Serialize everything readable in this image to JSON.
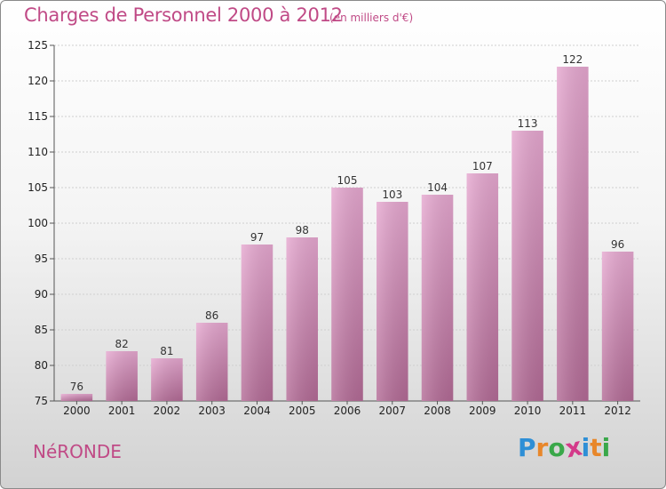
{
  "header": {
    "title": "Charges de Personnel 2000 à 2012",
    "subtitle": "(en milliers d'€)"
  },
  "footer": {
    "city": "NéRONDE",
    "logo_letters": [
      "P",
      "r",
      "o",
      "x",
      "i",
      "t",
      "i"
    ],
    "logo_colors": [
      "#2e8fd6",
      "#e8872a",
      "#3aa84a",
      "#d43a8a",
      "#2e8fd6",
      "#e8872a",
      "#3aa84a"
    ]
  },
  "colors": {
    "bar_top": "#e6a8d0",
    "bar_bottom": "#b36b96",
    "accent": "#c04a86"
  },
  "chart_data": {
    "type": "bar",
    "title": "Charges de Personnel 2000 à 2012",
    "subtitle": "(en milliers d'€)",
    "categories": [
      "2000",
      "2001",
      "2002",
      "2003",
      "2004",
      "2005",
      "2006",
      "2007",
      "2008",
      "2009",
      "2010",
      "2011",
      "2012"
    ],
    "values": [
      76,
      82,
      81,
      86,
      97,
      98,
      105,
      103,
      104,
      107,
      113,
      122,
      96
    ],
    "ylim": [
      75,
      125
    ],
    "yticks": [
      75,
      80,
      85,
      90,
      95,
      100,
      105,
      110,
      115,
      120,
      125
    ],
    "grid": true,
    "legend": "none"
  }
}
